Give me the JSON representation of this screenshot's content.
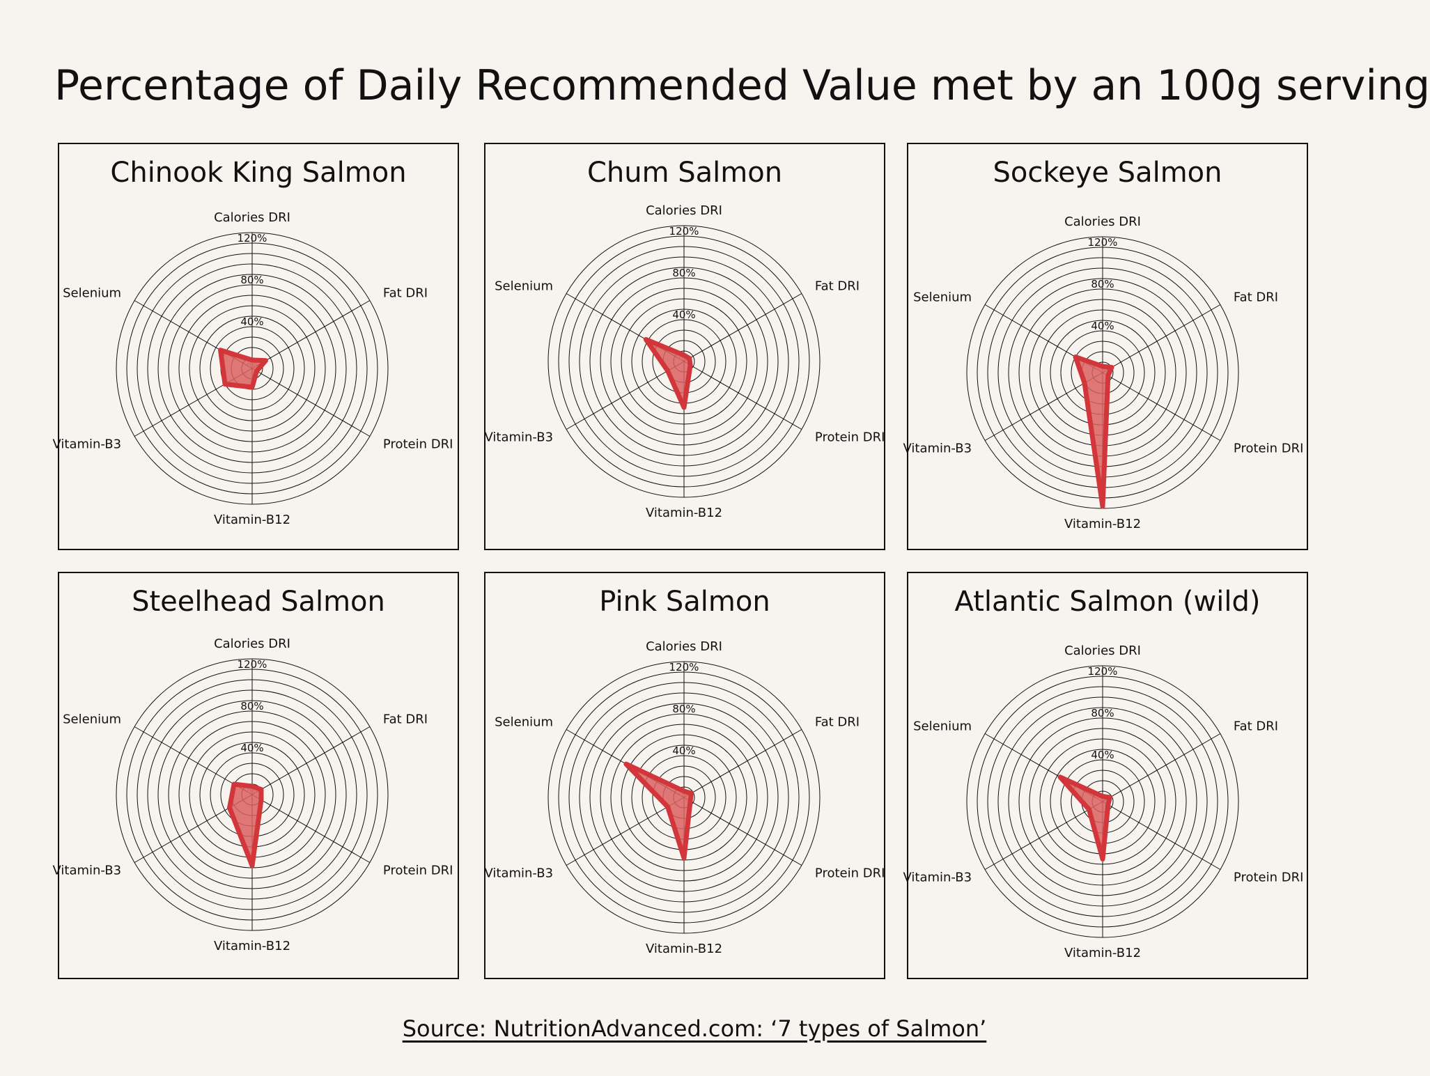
{
  "title": "Percentage of Daily Recommended Value met by an 100g serving",
  "source": "Source: NutritionAdvanced.com: ‘7 types of Salmon’",
  "colors": {
    "fill": "#d9605f",
    "stroke": "#d2353a",
    "grid": "#111111",
    "background": "#f7f4ef"
  },
  "chart_data": [
    {
      "type": "radar",
      "title": "Chinook King Salmon",
      "categories": [
        "Calories DRI",
        "Fat DRI",
        "Protein DRI",
        "Vitamin-B12",
        "Vitamin-B3",
        "Selenium"
      ],
      "values": [
        8,
        15,
        5,
        18,
        30,
        35
      ],
      "rlim": [
        0,
        130
      ],
      "tick_labels": [
        "0.0",
        "40%",
        "80%",
        "120%"
      ]
    },
    {
      "type": "radar",
      "title": "Chum Salmon",
      "categories": [
        "Calories DRI",
        "Fat DRI",
        "Protein DRI",
        "Vitamin-B12",
        "Vitamin-B3",
        "Selenium"
      ],
      "values": [
        6,
        6,
        7,
        44,
        18,
        42
      ],
      "rlim": [
        0,
        130
      ],
      "tick_labels": [
        "0.0",
        "40%",
        "80%",
        "120%"
      ]
    },
    {
      "type": "radar",
      "title": "Sockeye Salmon",
      "categories": [
        "Calories DRI",
        "Fat DRI",
        "Protein DRI",
        "Vitamin-B12",
        "Vitamin-B3",
        "Selenium"
      ],
      "values": [
        6,
        10,
        6,
        128,
        20,
        30
      ],
      "rlim": [
        0,
        130
      ],
      "tick_labels": [
        "0.0",
        "40%",
        "80%",
        "120%"
      ]
    },
    {
      "type": "radar",
      "title": "Steelhead Salmon",
      "categories": [
        "Calories DRI",
        "Fat DRI",
        "Protein DRI",
        "Vitamin-B12",
        "Vitamin-B3",
        "Selenium"
      ],
      "values": [
        8,
        10,
        10,
        68,
        25,
        20
      ],
      "rlim": [
        0,
        130
      ],
      "tick_labels": [
        "0.0",
        "40%",
        "80%",
        "120%"
      ]
    },
    {
      "type": "radar",
      "title": "Pink Salmon",
      "categories": [
        "Calories DRI",
        "Fat DRI",
        "Protein DRI",
        "Vitamin-B12",
        "Vitamin-B3",
        "Selenium"
      ],
      "values": [
        6,
        8,
        7,
        58,
        18,
        64
      ],
      "rlim": [
        0,
        130
      ],
      "tick_labels": [
        "0.0",
        "40%",
        "80%",
        "120%"
      ]
    },
    {
      "type": "radar",
      "title": "Atlantic Salmon (wild)",
      "categories": [
        "Calories DRI",
        "Fat DRI",
        "Protein DRI",
        "Vitamin-B12",
        "Vitamin-B3",
        "Selenium"
      ],
      "values": [
        5,
        8,
        6,
        55,
        15,
        47
      ],
      "rlim": [
        0,
        130
      ],
      "tick_labels": [
        "0.0",
        "40%",
        "80%",
        "120%"
      ]
    }
  ]
}
